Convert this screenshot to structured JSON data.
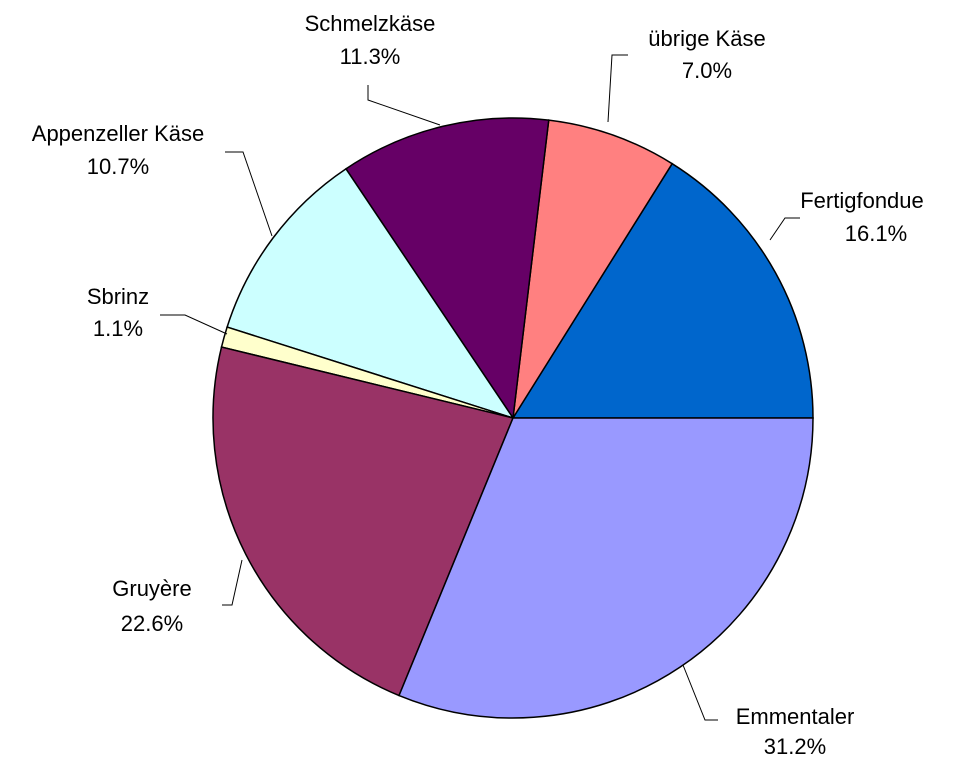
{
  "chart_data": {
    "type": "pie",
    "categories": [
      "Fertigfondue",
      "übrige Käse",
      "Schmelzkäse",
      "Appenzeller Käse",
      "Sbrinz",
      "Gruyère",
      "Emmentaler"
    ],
    "values": [
      16.1,
      7.0,
      11.3,
      10.7,
      1.1,
      22.6,
      31.2
    ],
    "value_labels": [
      "16.1%",
      "7.0%",
      "11.3%",
      "10.7%",
      "1.1%",
      "22.6%",
      "31.2%"
    ],
    "colors": [
      "#0066cc",
      "#ff8080",
      "#660066",
      "#ccffff",
      "#ffffcc",
      "#993366",
      "#9999ff"
    ]
  }
}
